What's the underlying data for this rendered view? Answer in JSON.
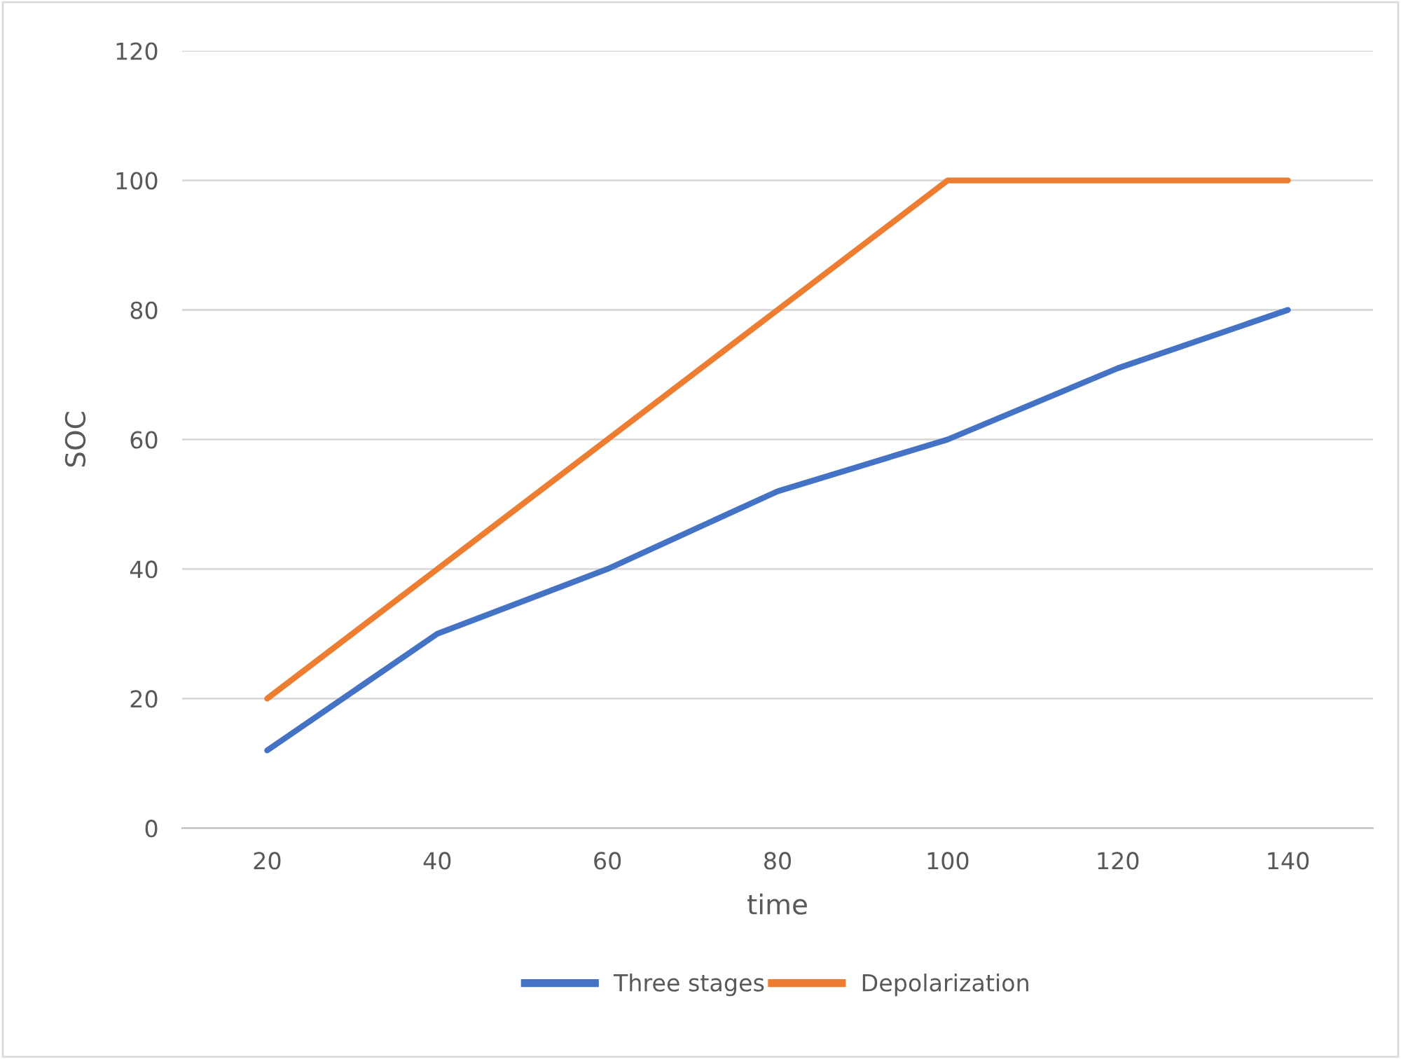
{
  "chart_data": {
    "type": "line",
    "xlabel": "time",
    "ylabel": "SOC",
    "categories": [
      "20",
      "40",
      "60",
      "80",
      "100",
      "120",
      "140"
    ],
    "series": [
      {
        "name": "Three stages",
        "color": "#4472c4",
        "values": [
          12,
          30,
          40,
          52,
          60,
          71,
          80
        ]
      },
      {
        "name": "Depolarization",
        "color": "#ed7d31",
        "values": [
          20,
          40,
          60,
          80,
          100,
          100,
          100
        ]
      }
    ],
    "ylim": [
      0,
      120
    ],
    "yticks": [
      0,
      20,
      40,
      60,
      80,
      100,
      120
    ],
    "grid": "y",
    "legend": "bottom",
    "marker": "none",
    "line_style": "solid"
  }
}
